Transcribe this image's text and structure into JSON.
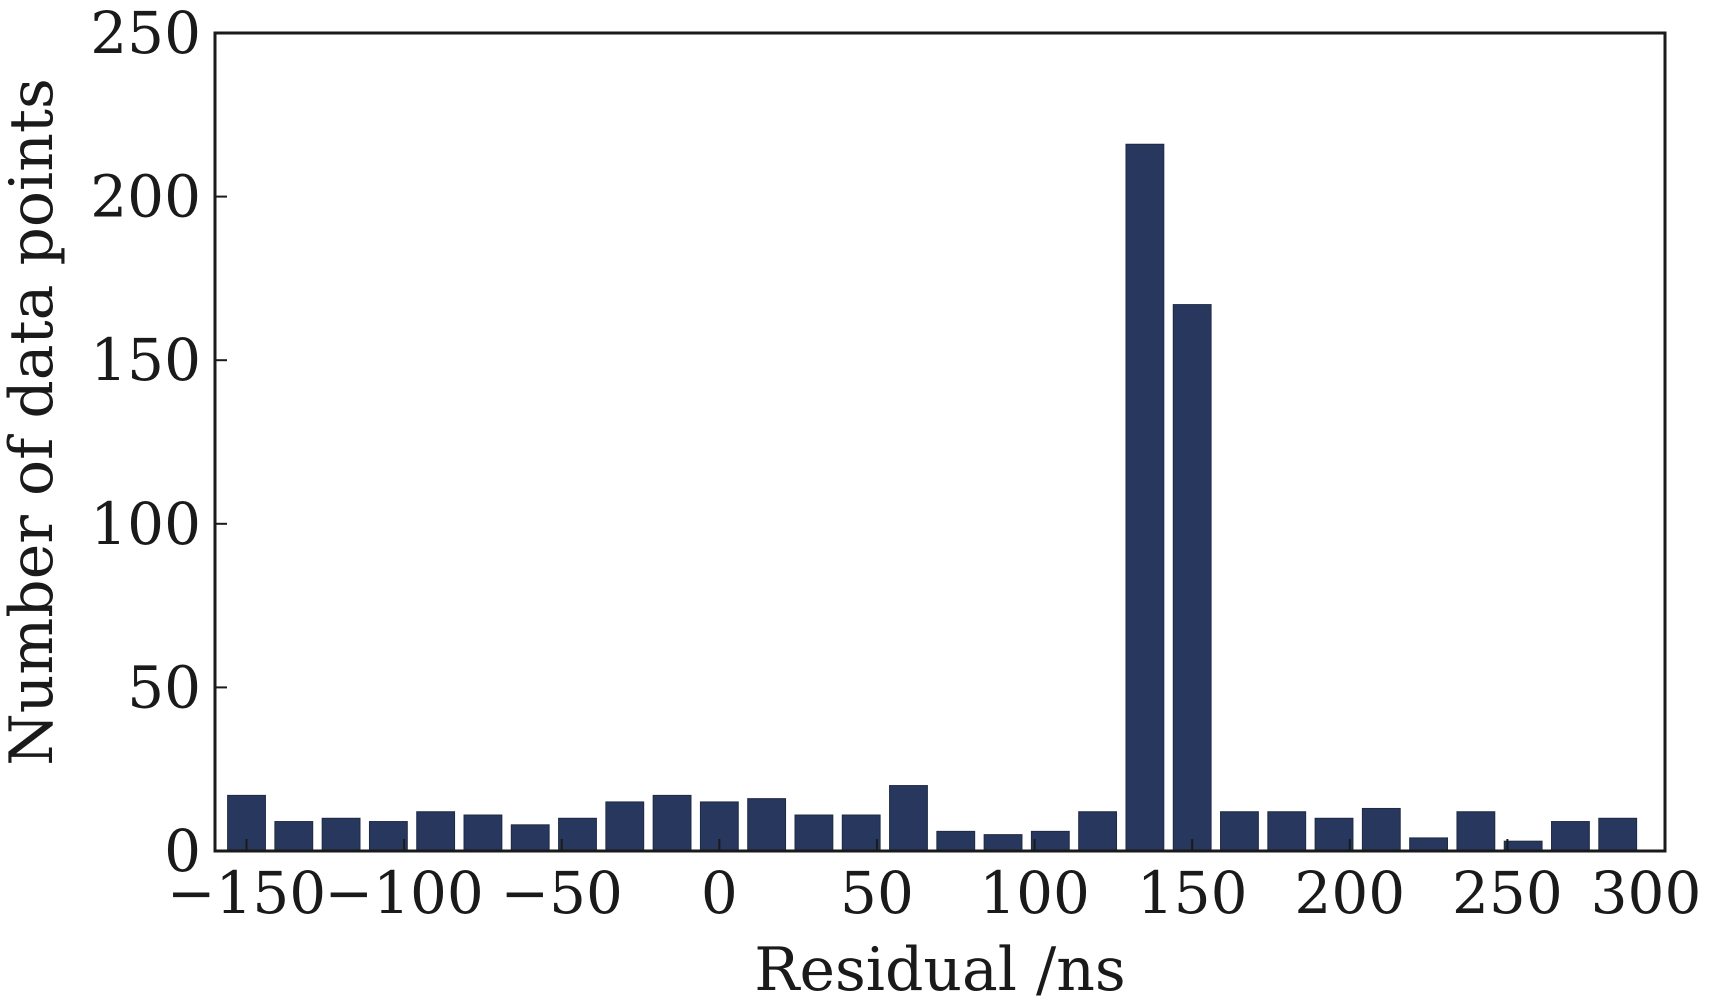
{
  "chart_data": {
    "type": "bar",
    "title": "",
    "xlabel": "Residual /ns",
    "ylabel": "Number of data points",
    "xlim": [
      -160,
      300
    ],
    "ylim": [
      0,
      250
    ],
    "xticks": [
      -150,
      -100,
      -50,
      0,
      50,
      100,
      150,
      200,
      250,
      300
    ],
    "xtick_labels": [
      "−150",
      "−100",
      "−50",
      "0",
      "50",
      "100",
      "150",
      "200",
      "250",
      "300"
    ],
    "yticks": [
      0,
      50,
      100,
      150,
      200,
      250
    ],
    "ytick_labels": [
      "0",
      "50",
      "100",
      "150",
      "200",
      "250"
    ],
    "grid": false,
    "legend": "none",
    "bar_color": "#27375e",
    "bin_width": 15,
    "series": [
      {
        "x": [
          -150,
          -135,
          -120,
          -105,
          -90,
          -75,
          -60,
          -45,
          -30,
          -15,
          0,
          15,
          30,
          45,
          60,
          75,
          90,
          105,
          120,
          135,
          150,
          165,
          180,
          195,
          210,
          225,
          240,
          255,
          270,
          285,
          300
        ],
        "values": [
          17,
          9,
          10,
          9,
          12,
          11,
          8,
          10,
          15,
          17,
          15,
          16,
          11,
          11,
          20,
          6,
          5,
          6,
          12,
          216,
          167,
          12,
          12,
          10,
          13,
          4,
          12,
          3,
          9,
          10,
          0
        ]
      }
    ]
  }
}
